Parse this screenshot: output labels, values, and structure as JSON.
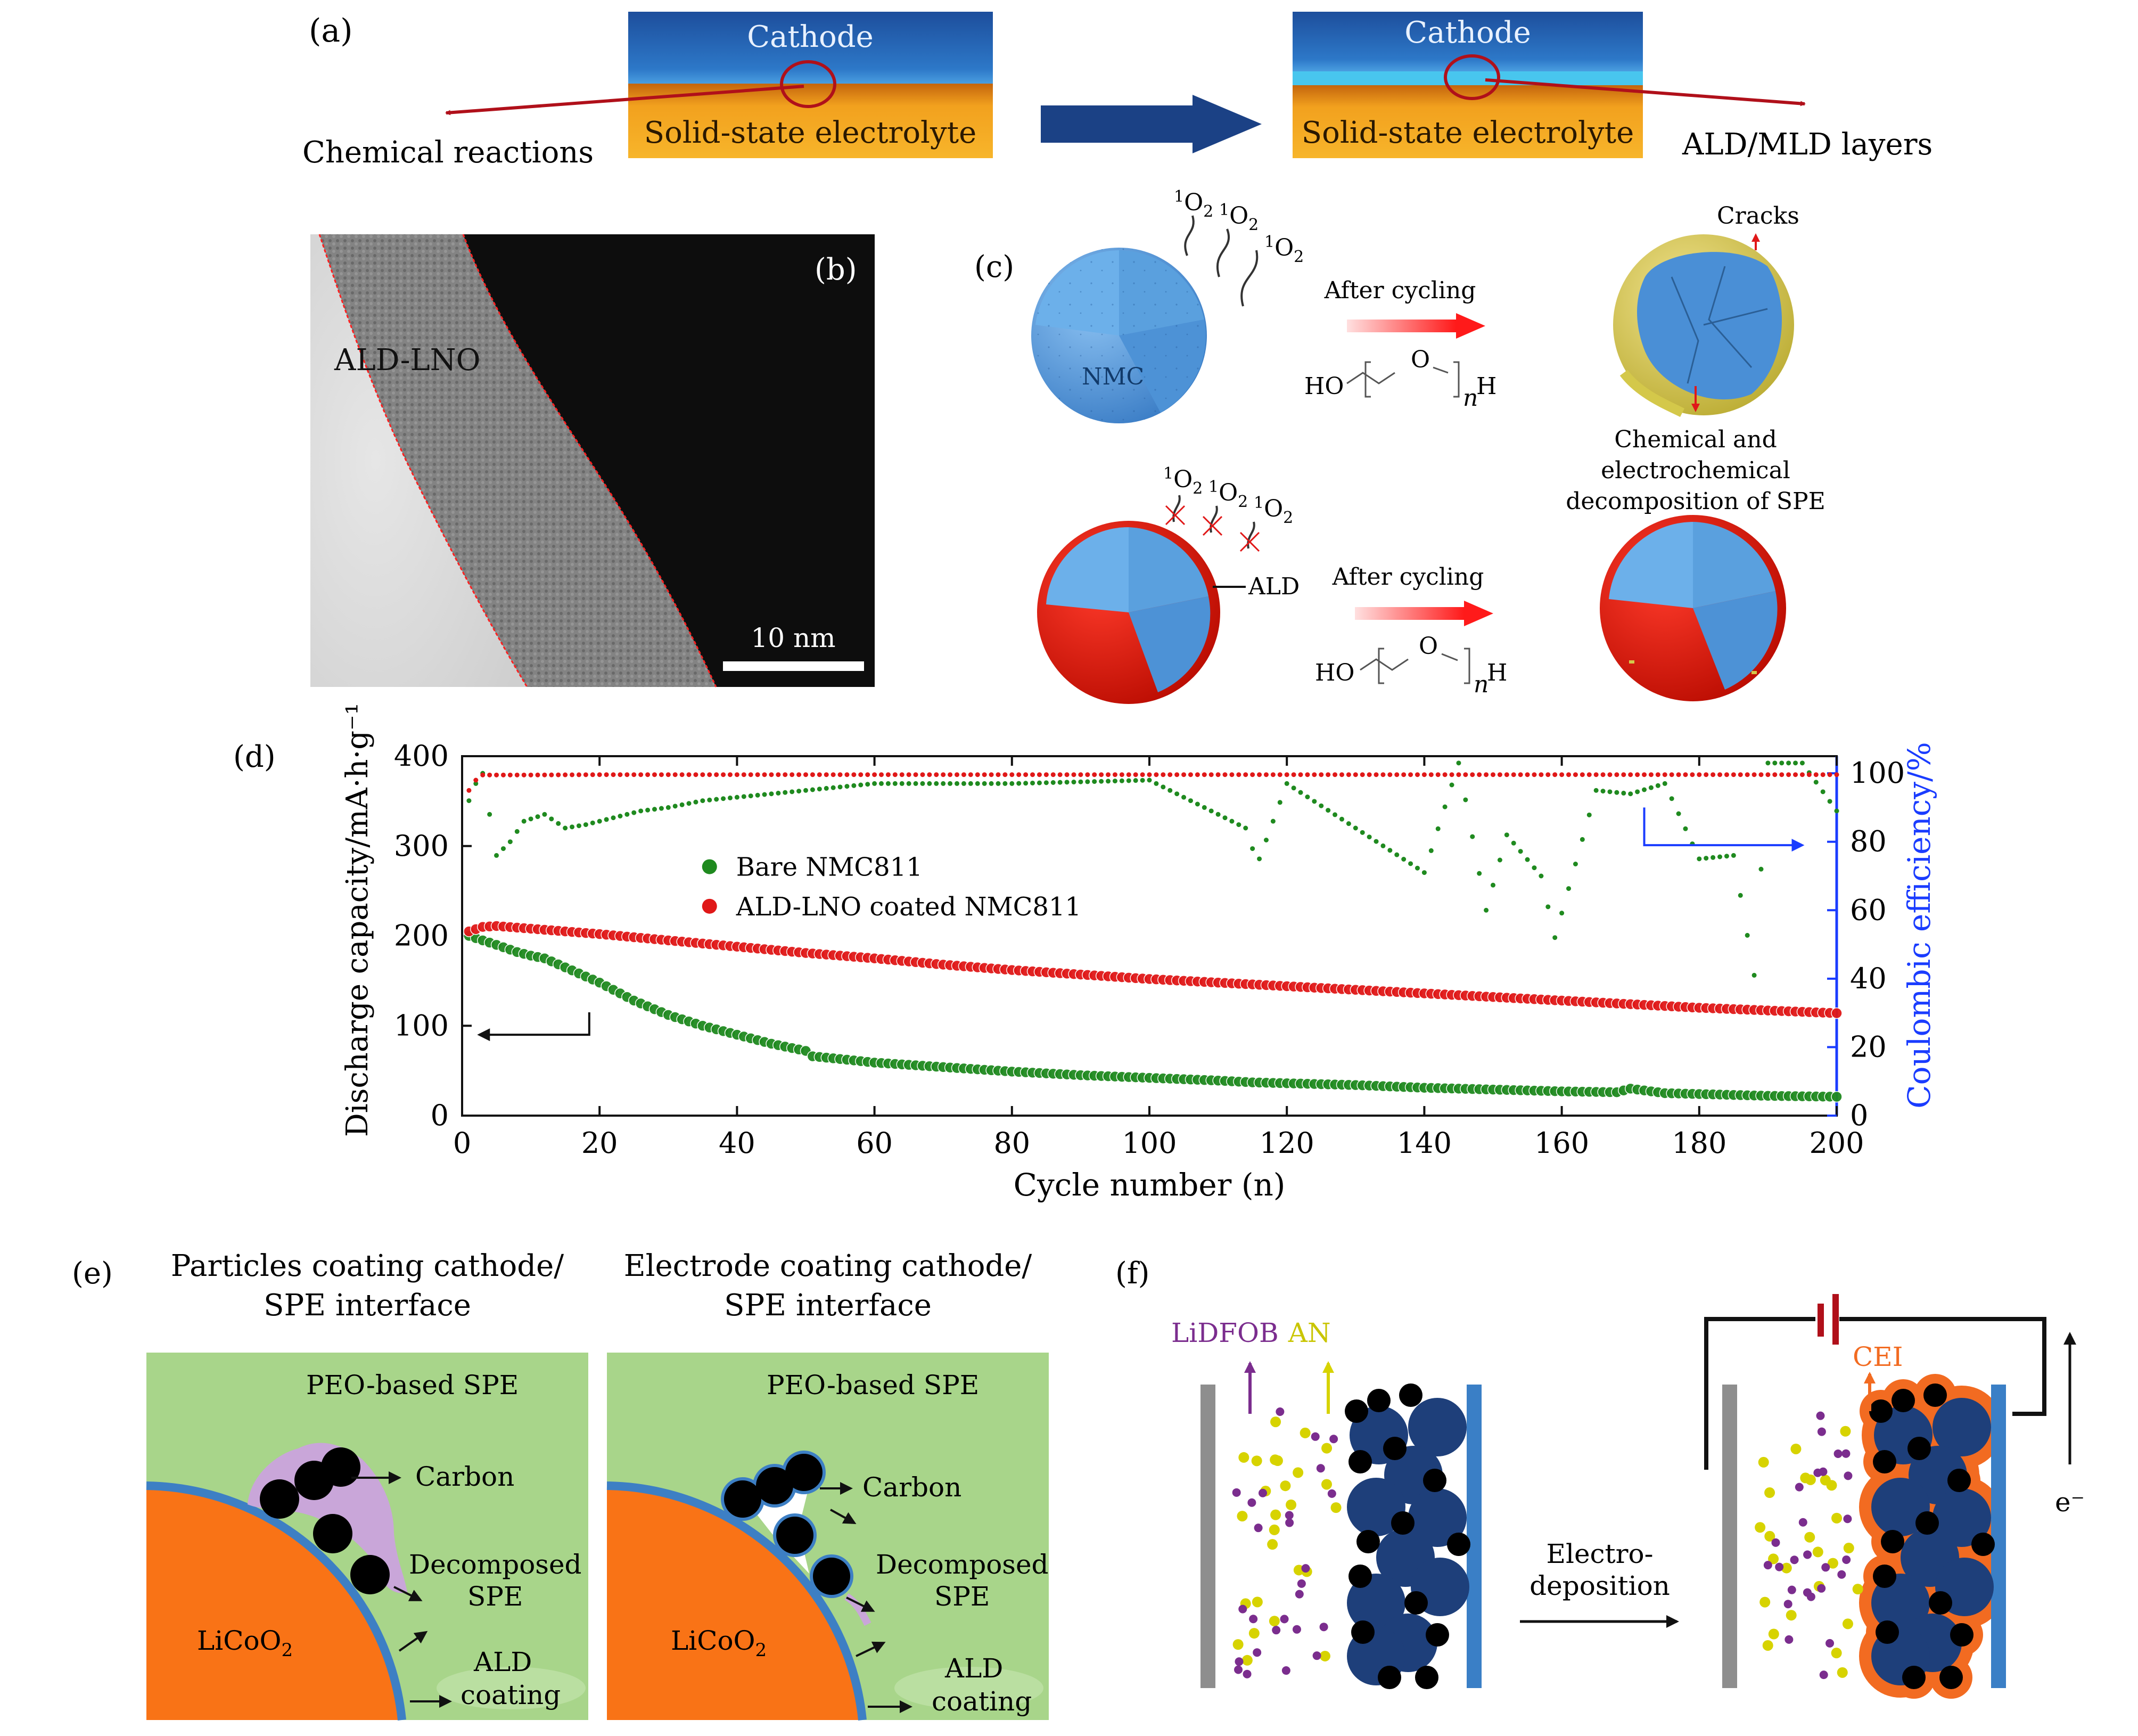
{
  "panel_a": {
    "label": "(a)",
    "cathode_left": "Cathode",
    "sse_left": "Solid-state electrolyte",
    "chem_reactions": "Chemical reactions",
    "cathode_right": "Cathode",
    "sse_right": "Solid-state electrolyte",
    "ald_mld": "ALD/MLD layers",
    "colors": {
      "cathode": "#1f5aa6",
      "electrolyte": "#f5a623",
      "arrow": "#1b4185",
      "accent_red": "#b0101a"
    }
  },
  "panel_b": {
    "label": "(b)",
    "material": "ALD-LNO",
    "scale_bar": "10 nm"
  },
  "panel_c": {
    "label": "(c)",
    "singlet_o2": "O",
    "singlet_sup": "1",
    "singlet_sub": "2",
    "nmc": "NMC",
    "after_cycling_1": "After cycling",
    "after_cycling_2": "After cycling",
    "cracks": "Cracks",
    "ald": "ALD",
    "decomp_line1": "Chemical and",
    "decomp_line2": "electrochemical",
    "decomp_line3": "decomposition of SPE",
    "peo_ho": "HO",
    "peo_o": "O",
    "peo_n": "n",
    "peo_h": "H"
  },
  "panel_d": {
    "label": "(d)",
    "chart_data": {
      "type": "scatter",
      "xlabel": "Cycle number (n)",
      "ylabel_left": "Discharge capacity/mA·h·g⁻¹",
      "ylabel_right": "Coulombic efficiency/%",
      "xlim": [
        0,
        200
      ],
      "ylim_left": [
        0,
        400
      ],
      "ylim_right": [
        0,
        105
      ],
      "xticks": [
        "0",
        "20",
        "40",
        "60",
        "80",
        "100",
        "120",
        "140",
        "160",
        "180",
        "200"
      ],
      "yticks_left": [
        "0",
        "100",
        "200",
        "300",
        "400"
      ],
      "yticks_right": [
        "0",
        "20",
        "40",
        "60",
        "80",
        "100"
      ],
      "legend": [
        "Bare NMC811",
        "ALD-LNO coated NMC811"
      ],
      "legend_position": "center-left",
      "series": [
        {
          "name": "Bare NMC811",
          "axis": "left",
          "color": "#1f8a1f",
          "x": [
            1,
            3,
            5,
            8,
            10,
            12,
            15,
            20,
            25,
            30,
            35,
            40,
            45,
            50,
            51,
            55,
            60,
            70,
            80,
            90,
            100,
            110,
            115,
            120,
            130,
            140,
            150,
            160,
            168,
            170,
            175,
            180,
            190,
            200
          ],
          "y": [
            200,
            195,
            190,
            182,
            178,
            175,
            165,
            148,
            128,
            112,
            100,
            90,
            80,
            72,
            66,
            63,
            59,
            54,
            49,
            45,
            42,
            39,
            37,
            36,
            34,
            31,
            29,
            27,
            26,
            30,
            25,
            24,
            22,
            21
          ]
        },
        {
          "name": "ALD-LNO coated NMC811",
          "axis": "left",
          "color": "#e01818",
          "x": [
            1,
            3,
            5,
            10,
            20,
            30,
            40,
            50,
            60,
            70,
            80,
            90,
            100,
            110,
            120,
            130,
            140,
            150,
            160,
            170,
            180,
            190,
            200
          ],
          "y": [
            205,
            210,
            211,
            208,
            202,
            195,
            188,
            181,
            175,
            168,
            162,
            157,
            152,
            148,
            144,
            140,
            136,
            132,
            128,
            124,
            120,
            117,
            114
          ]
        },
        {
          "name": "Bare NMC811 CE",
          "axis": "right",
          "color": "#1f8a1f",
          "x": [
            1,
            2,
            3,
            5,
            7,
            9,
            12,
            15,
            18,
            22,
            26,
            30,
            35,
            40,
            50,
            60,
            80,
            100,
            114,
            115,
            116,
            120,
            140,
            145,
            149,
            152,
            157,
            159,
            165,
            170,
            175,
            180,
            185,
            188,
            190,
            195,
            200
          ],
          "y": [
            92,
            97,
            100,
            76,
            80,
            86,
            88,
            84,
            85,
            87,
            89,
            90,
            92,
            93,
            95,
            97,
            97,
            98,
            84,
            78,
            75,
            97,
            71,
            103,
            60,
            82,
            70,
            52,
            95,
            94,
            97,
            75,
            76,
            41,
            103,
            103,
            89
          ]
        },
        {
          "name": "ALD-LNO coated NMC811 CE",
          "axis": "right",
          "color": "#e01818",
          "x": [
            1,
            2,
            3,
            5,
            10,
            20,
            50,
            100,
            150,
            200
          ],
          "y": [
            95,
            98,
            99.5,
            99.5,
            99.5,
            99.6,
            99.6,
            99.6,
            99.6,
            99.6
          ]
        }
      ]
    }
  },
  "panel_e": {
    "label": "(e)",
    "title_left_1": "Particles coating cathode/",
    "title_left_2": "SPE interface",
    "title_right_1": "Electrode coating cathode/",
    "title_right_2": "SPE interface",
    "peo": "PEO-based SPE",
    "carbon": "Carbon",
    "decomposed_1": "Decomposed",
    "decomposed_2": "SPE",
    "licoo2": "LiCoO",
    "licoo2_sub": "2",
    "ald_1": "ALD",
    "ald_2": "coating",
    "colors": {
      "background": "#a8d58a",
      "licoo2": "#f97316",
      "coating": "#3d7fc4",
      "decomposed": "#c9a6d9"
    }
  },
  "panel_f": {
    "label": "(f)",
    "lidfob": "LiDFOB",
    "an": "AN",
    "electro_1": "Electro-",
    "electro_2": "deposition",
    "cei": "CEI",
    "electron": "e⁻",
    "colors": {
      "lidfob": "#7b2d8e",
      "an": "#d7d300",
      "cei": "#f26b21",
      "particle": "#1e3f7a",
      "collector": "#3a7fc6"
    }
  }
}
